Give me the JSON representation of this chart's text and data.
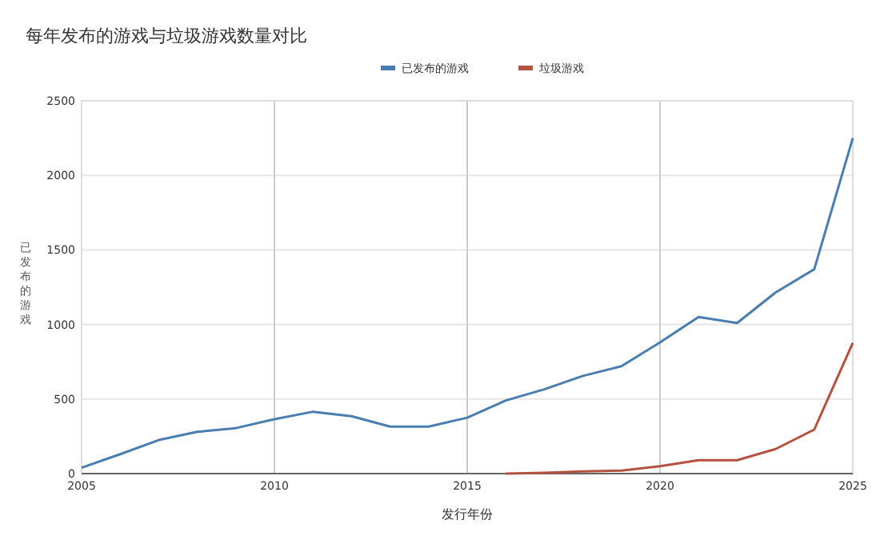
{
  "chart_data": {
    "type": "line",
    "title": "每年发布的游戏与垃圾游戏数量对比",
    "xlabel": "发行年份",
    "ylabel": "已发布的游戏",
    "x": [
      2005,
      2006,
      2007,
      2008,
      2009,
      2010,
      2011,
      2012,
      2013,
      2014,
      2015,
      2016,
      2017,
      2018,
      2019,
      2020,
      2021,
      2022,
      2023,
      2024,
      2025
    ],
    "series": [
      {
        "name": "已发布的游戏",
        "color": "#4a7eb0",
        "values": [
          40,
          130,
          225,
          280,
          305,
          365,
          415,
          385,
          315,
          315,
          375,
          490,
          565,
          655,
          720,
          880,
          1050,
          1010,
          1215,
          1370,
          2250
        ]
      },
      {
        "name": "垃圾游戏",
        "color": "#b5513f",
        "values": [
          null,
          null,
          null,
          null,
          null,
          null,
          null,
          null,
          null,
          null,
          null,
          0,
          5,
          15,
          20,
          50,
          90,
          90,
          165,
          295,
          877
        ]
      }
    ],
    "xlim": [
      2005,
      2025
    ],
    "xticks": [
      2005,
      2010,
      2015,
      2020,
      2025
    ],
    "ylim": [
      0,
      2500
    ],
    "yticks": [
      0,
      500,
      1000,
      1500,
      2000,
      2500
    ],
    "grid": true,
    "legend": "top",
    "marker": "none",
    "line_style": "solid"
  }
}
